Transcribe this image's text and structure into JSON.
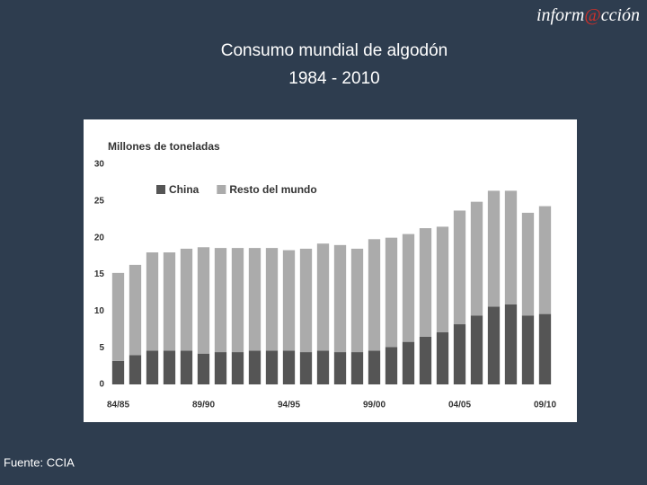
{
  "slide": {
    "logo": [
      "inform",
      "@",
      "cción"
    ],
    "title": "Consumo mundial de algodón",
    "subtitle": "1984 - 2010",
    "source": "Fuente: CCIA"
  },
  "chart_data": {
    "type": "bar",
    "stacked": true,
    "ylabel": "Millones de toneladas",
    "categories": [
      "84/85",
      null,
      null,
      null,
      null,
      "89/90",
      null,
      null,
      null,
      null,
      "94/95",
      null,
      null,
      null,
      null,
      "99/00",
      null,
      null,
      null,
      null,
      "04/05",
      null,
      null,
      null,
      null,
      "09/10"
    ],
    "series": [
      {
        "name": "China",
        "color": "#555555",
        "values": [
          3.2,
          4.0,
          4.6,
          4.6,
          4.6,
          4.2,
          4.4,
          4.4,
          4.6,
          4.6,
          4.6,
          4.4,
          4.6,
          4.4,
          4.4,
          4.6,
          5.1,
          5.8,
          6.5,
          7.1,
          8.2,
          9.4,
          10.6,
          10.9,
          9.4,
          9.6
        ]
      },
      {
        "name": "Resto del mundo",
        "color": "#ababab",
        "values": [
          12.0,
          12.3,
          13.4,
          13.4,
          13.9,
          14.5,
          14.2,
          14.2,
          14.0,
          14.0,
          13.7,
          14.1,
          14.6,
          14.6,
          14.1,
          15.2,
          14.9,
          14.7,
          14.8,
          14.4,
          15.5,
          15.5,
          15.8,
          15.5,
          14.0,
          14.7
        ]
      }
    ],
    "ylim": [
      0,
      30
    ],
    "yticks": [
      0,
      5,
      10,
      15,
      20,
      25,
      30
    ],
    "grid": false,
    "legend": "top-left"
  }
}
